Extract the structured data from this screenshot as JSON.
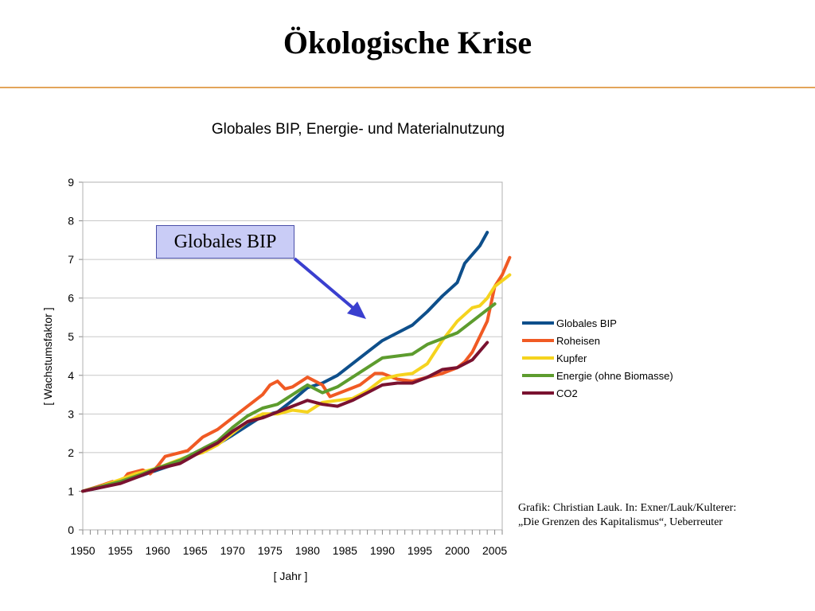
{
  "slide": {
    "title": "Ökologische Krise",
    "callout": "Globales BIP",
    "source_line1": "Grafik: Christian Lauk. In: Exner/Lauk/Kulterer:",
    "source_line2": "„Die Grenzen des Kapitalismus“, Ueberreuter",
    "colors": {
      "rule": "#e3a55a",
      "callout_fill": "#c9ccf6",
      "arrow": "#3a3fcf"
    }
  },
  "chart_data": {
    "type": "line",
    "title": "Globales BIP, Energie- und Materialnutzung",
    "xlabel": "[ Jahr ]",
    "ylabel": "[ Wachstumsfaktor ]",
    "xlim": [
      1950,
      2006
    ],
    "ylim": [
      0,
      9
    ],
    "grid": true,
    "legend_position": "right",
    "x_ticks": [
      "1950",
      "1955",
      "1960",
      "1965",
      "1970",
      "1975",
      "1980",
      "1985",
      "1990",
      "1995",
      "2000",
      "2005"
    ],
    "y_ticks": [
      "0",
      "1",
      "2",
      "3",
      "4",
      "5",
      "6",
      "7",
      "8",
      "9"
    ],
    "series": [
      {
        "name": "Globales BIP",
        "color": "#0e4f8b",
        "points": [
          [
            1950,
            1.0
          ],
          [
            1952,
            1.08
          ],
          [
            1955,
            1.22
          ],
          [
            1957,
            1.35
          ],
          [
            1960,
            1.55
          ],
          [
            1962,
            1.68
          ],
          [
            1965,
            1.95
          ],
          [
            1967,
            2.1
          ],
          [
            1970,
            2.45
          ],
          [
            1972,
            2.7
          ],
          [
            1974,
            2.95
          ],
          [
            1976,
            3.05
          ],
          [
            1978,
            3.35
          ],
          [
            1980,
            3.68
          ],
          [
            1982,
            3.8
          ],
          [
            1984,
            4.0
          ],
          [
            1986,
            4.3
          ],
          [
            1988,
            4.6
          ],
          [
            1990,
            4.9
          ],
          [
            1992,
            5.1
          ],
          [
            1994,
            5.3
          ],
          [
            1996,
            5.65
          ],
          [
            1998,
            6.05
          ],
          [
            2000,
            6.4
          ],
          [
            2001,
            6.9
          ],
          [
            2003,
            7.35
          ],
          [
            2004,
            7.7
          ]
        ]
      },
      {
        "name": "Roheisen",
        "color": "#f05a24",
        "points": [
          [
            1950,
            1.0
          ],
          [
            1952,
            1.12
          ],
          [
            1954,
            1.25
          ],
          [
            1955,
            1.2
          ],
          [
            1956,
            1.45
          ],
          [
            1958,
            1.55
          ],
          [
            1959,
            1.45
          ],
          [
            1960,
            1.65
          ],
          [
            1961,
            1.9
          ],
          [
            1962,
            1.95
          ],
          [
            1964,
            2.05
          ],
          [
            1966,
            2.4
          ],
          [
            1968,
            2.6
          ],
          [
            1970,
            2.9
          ],
          [
            1972,
            3.2
          ],
          [
            1974,
            3.5
          ],
          [
            1975,
            3.75
          ],
          [
            1976,
            3.85
          ],
          [
            1977,
            3.65
          ],
          [
            1978,
            3.7
          ],
          [
            1980,
            3.95
          ],
          [
            1982,
            3.75
          ],
          [
            1983,
            3.45
          ],
          [
            1985,
            3.6
          ],
          [
            1987,
            3.75
          ],
          [
            1989,
            4.05
          ],
          [
            1990,
            4.05
          ],
          [
            1992,
            3.9
          ],
          [
            1994,
            3.85
          ],
          [
            1996,
            3.95
          ],
          [
            1998,
            4.05
          ],
          [
            2000,
            4.2
          ],
          [
            2001,
            4.35
          ],
          [
            2002,
            4.6
          ],
          [
            2003,
            5.0
          ],
          [
            2004,
            5.4
          ],
          [
            2005,
            6.3
          ],
          [
            2006,
            6.6
          ],
          [
            2007,
            7.05
          ]
        ]
      },
      {
        "name": "Kupfer",
        "color": "#f5d31e",
        "points": [
          [
            1950,
            1.0
          ],
          [
            1952,
            1.1
          ],
          [
            1955,
            1.3
          ],
          [
            1957,
            1.45
          ],
          [
            1960,
            1.6
          ],
          [
            1962,
            1.75
          ],
          [
            1964,
            1.9
          ],
          [
            1966,
            2.0
          ],
          [
            1968,
            2.2
          ],
          [
            1970,
            2.5
          ],
          [
            1972,
            2.8
          ],
          [
            1974,
            3.0
          ],
          [
            1976,
            3.0
          ],
          [
            1978,
            3.1
          ],
          [
            1980,
            3.05
          ],
          [
            1982,
            3.3
          ],
          [
            1984,
            3.35
          ],
          [
            1986,
            3.4
          ],
          [
            1988,
            3.6
          ],
          [
            1990,
            3.9
          ],
          [
            1992,
            4.0
          ],
          [
            1994,
            4.05
          ],
          [
            1996,
            4.3
          ],
          [
            1998,
            4.9
          ],
          [
            2000,
            5.4
          ],
          [
            2002,
            5.75
          ],
          [
            2003,
            5.8
          ],
          [
            2004,
            6.0
          ],
          [
            2005,
            6.3
          ],
          [
            2006,
            6.45
          ],
          [
            2007,
            6.6
          ]
        ]
      },
      {
        "name": "Energie (ohne Biomasse)",
        "color": "#5d9c2e",
        "points": [
          [
            1950,
            1.0
          ],
          [
            1952,
            1.1
          ],
          [
            1955,
            1.25
          ],
          [
            1958,
            1.45
          ],
          [
            1960,
            1.6
          ],
          [
            1963,
            1.8
          ],
          [
            1966,
            2.1
          ],
          [
            1968,
            2.3
          ],
          [
            1970,
            2.65
          ],
          [
            1972,
            2.95
          ],
          [
            1974,
            3.15
          ],
          [
            1976,
            3.25
          ],
          [
            1978,
            3.5
          ],
          [
            1980,
            3.75
          ],
          [
            1982,
            3.55
          ],
          [
            1984,
            3.7
          ],
          [
            1986,
            3.95
          ],
          [
            1988,
            4.2
          ],
          [
            1990,
            4.45
          ],
          [
            1992,
            4.5
          ],
          [
            1994,
            4.55
          ],
          [
            1996,
            4.8
          ],
          [
            1998,
            4.95
          ],
          [
            2000,
            5.1
          ],
          [
            2002,
            5.4
          ],
          [
            2004,
            5.7
          ],
          [
            2005,
            5.85
          ]
        ]
      },
      {
        "name": "CO2",
        "color": "#7a1230",
        "points": [
          [
            1950,
            1.0
          ],
          [
            1952,
            1.08
          ],
          [
            1955,
            1.2
          ],
          [
            1958,
            1.42
          ],
          [
            1960,
            1.58
          ],
          [
            1963,
            1.72
          ],
          [
            1966,
            2.05
          ],
          [
            1968,
            2.25
          ],
          [
            1970,
            2.55
          ],
          [
            1972,
            2.8
          ],
          [
            1974,
            2.9
          ],
          [
            1976,
            3.05
          ],
          [
            1978,
            3.2
          ],
          [
            1980,
            3.35
          ],
          [
            1982,
            3.25
          ],
          [
            1984,
            3.2
          ],
          [
            1986,
            3.35
          ],
          [
            1988,
            3.55
          ],
          [
            1990,
            3.75
          ],
          [
            1992,
            3.8
          ],
          [
            1994,
            3.8
          ],
          [
            1996,
            3.95
          ],
          [
            1998,
            4.15
          ],
          [
            2000,
            4.2
          ],
          [
            2002,
            4.4
          ],
          [
            2004,
            4.85
          ]
        ]
      }
    ]
  }
}
